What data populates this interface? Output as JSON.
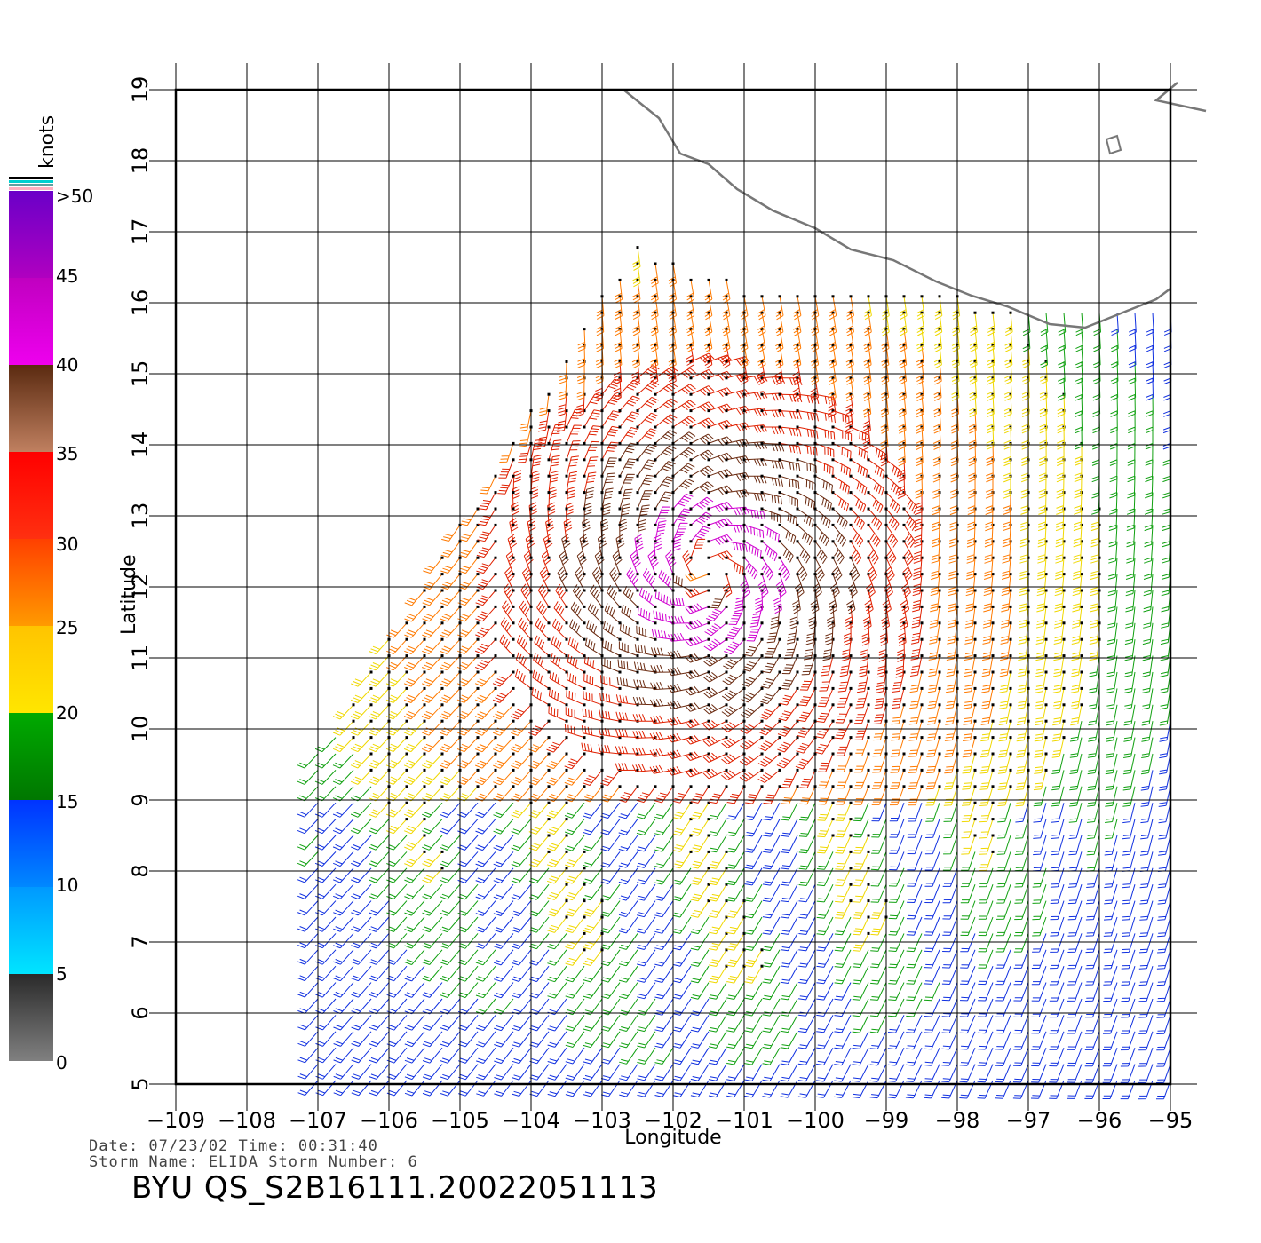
{
  "axes": {
    "xlabel": "Longitude",
    "ylabel": "Latitude",
    "x_ticks": [
      "−109",
      "−108",
      "−107",
      "−106",
      "−105",
      "−104",
      "−103",
      "−102",
      "−101",
      "−100",
      "−99",
      "−98",
      "−97",
      "−96",
      "−95"
    ],
    "y_ticks": [
      "5",
      "6",
      "7",
      "8",
      "9",
      "10",
      "11",
      "12",
      "13",
      "14",
      "15",
      "16",
      "17",
      "18",
      "19"
    ]
  },
  "legend": {
    "unit": "knots",
    "labels": [
      ">50",
      "45",
      "40",
      "35",
      "30",
      "25",
      "20",
      "15",
      "10",
      "5",
      "0"
    ],
    "colors": {
      "gray": "#808080",
      "cyan": "#00e5ff",
      "blue": "#0033ff",
      "green": "#00aa00",
      "yellow": "#ffe600",
      "orange": "#ff7a00",
      "red": "#e62000",
      "brown": "#5a2a10",
      "magenta": "#ee00ee",
      "purple": "#6a00c8"
    }
  },
  "meta": {
    "date_line": "Date: 07/23/02   Time: 00:31:40",
    "storm_line": "Storm Name: ELIDA   Storm Number: 6",
    "title": "BYU  QS_S2B16111.20022051113"
  },
  "chart_data": {
    "type": "wind barb map",
    "xlabel": "Longitude",
    "ylabel": "Latitude",
    "xlim": [
      -109,
      -95
    ],
    "ylim": [
      5,
      19
    ],
    "unit": "knots",
    "legend_scale": [
      0,
      5,
      10,
      15,
      20,
      25,
      30,
      35,
      40,
      45,
      50
    ],
    "storm_center": {
      "lon": -101.5,
      "lat": 12.2
    },
    "max_wind_class": ">50",
    "grid": true
  }
}
